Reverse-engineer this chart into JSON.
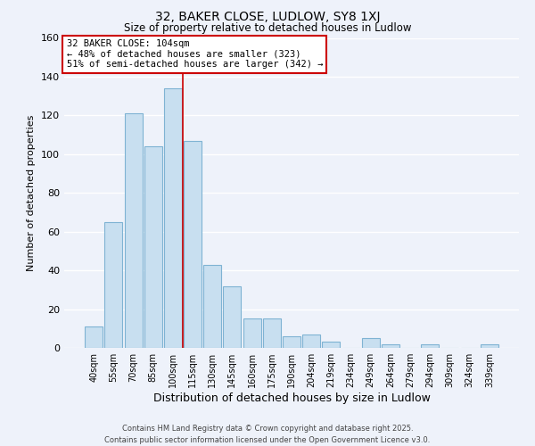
{
  "title": "32, BAKER CLOSE, LUDLOW, SY8 1XJ",
  "subtitle": "Size of property relative to detached houses in Ludlow",
  "xlabel": "Distribution of detached houses by size in Ludlow",
  "ylabel": "Number of detached properties",
  "bar_labels": [
    "40sqm",
    "55sqm",
    "70sqm",
    "85sqm",
    "100sqm",
    "115sqm",
    "130sqm",
    "145sqm",
    "160sqm",
    "175sqm",
    "190sqm",
    "204sqm",
    "219sqm",
    "234sqm",
    "249sqm",
    "264sqm",
    "279sqm",
    "294sqm",
    "309sqm",
    "324sqm",
    "339sqm"
  ],
  "bar_values": [
    11,
    65,
    121,
    104,
    134,
    107,
    43,
    32,
    15,
    15,
    6,
    7,
    3,
    0,
    5,
    2,
    0,
    2,
    0,
    0,
    2
  ],
  "bar_color": "#c8dff0",
  "bar_edge_color": "#7fb3d3",
  "vline_x": 4.5,
  "vline_color": "#cc0000",
  "ylim": [
    0,
    160
  ],
  "yticks": [
    0,
    20,
    40,
    60,
    80,
    100,
    120,
    140,
    160
  ],
  "annotation_title": "32 BAKER CLOSE: 104sqm",
  "annotation_line1": "← 48% of detached houses are smaller (323)",
  "annotation_line2": "51% of semi-detached houses are larger (342) →",
  "annotation_box_color": "#ffffff",
  "annotation_box_edge": "#cc0000",
  "footer_line1": "Contains HM Land Registry data © Crown copyright and database right 2025.",
  "footer_line2": "Contains public sector information licensed under the Open Government Licence v3.0.",
  "background_color": "#eef2fa",
  "grid_color": "#ffffff"
}
